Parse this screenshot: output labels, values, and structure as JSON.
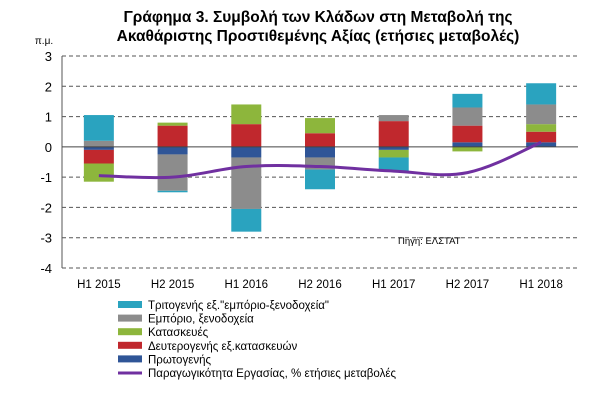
{
  "chart_data": {
    "type": "bar",
    "stacked": true,
    "title_lines": [
      "Γράφημα 3. Συμβολή των Κλάδων στη Μεταβολή της",
      "Ακαθάριστης Προστιθεμένης Αξίας (ετήσιες μεταβολές)"
    ],
    "unit_label": "π.μ.",
    "source": "Πηγή: ΕΛΣΤΑΤ",
    "categories": [
      "H1 2015",
      "H2 2015",
      "H1 2016",
      "H2 2016",
      "H1 2017",
      "H2 2017",
      "H1 2018"
    ],
    "ylim": [
      -4,
      3
    ],
    "yticks": [
      -4,
      -3,
      -2,
      -1,
      0,
      1,
      2,
      3
    ],
    "grid": true,
    "legend_position": "bottom",
    "series": [
      {
        "name": "Τριτογενής εξ.\"εμπόριο-ξενοδοχεία\"",
        "color": "#2AA3BF",
        "type": "bar",
        "values": [
          0.85,
          -0.05,
          -0.75,
          -0.65,
          -0.45,
          0.45,
          0.7
        ]
      },
      {
        "name": "Εμπόριο, ξενοδοχεία",
        "color": "#8C8C8C",
        "type": "bar",
        "values": [
          0.2,
          -1.2,
          -1.7,
          -0.4,
          0.2,
          0.6,
          0.65
        ]
      },
      {
        "name": "Κατασκευές",
        "color": "#8DB63C",
        "type": "bar",
        "values": [
          -0.6,
          0.1,
          0.65,
          0.5,
          -0.25,
          -0.15,
          0.25
        ]
      },
      {
        "name": "Δευτερογενής  εξ.κατασκευών",
        "color": "#C0282D",
        "type": "bar",
        "values": [
          -0.45,
          0.7,
          0.75,
          0.45,
          0.85,
          0.55,
          0.35
        ]
      },
      {
        "name": "Πρωτογενής",
        "color": "#2F5597",
        "type": "bar",
        "values": [
          -0.1,
          -0.25,
          -0.35,
          -0.35,
          -0.1,
          0.15,
          0.15
        ]
      },
      {
        "name": "Παραγωγικότητα Εργασίας, % ετήσιες μεταβολές",
        "color": "#7030A0",
        "type": "line",
        "values": [
          -0.95,
          -1.0,
          -0.65,
          -0.65,
          -0.8,
          -0.85,
          0.15
        ]
      }
    ]
  }
}
